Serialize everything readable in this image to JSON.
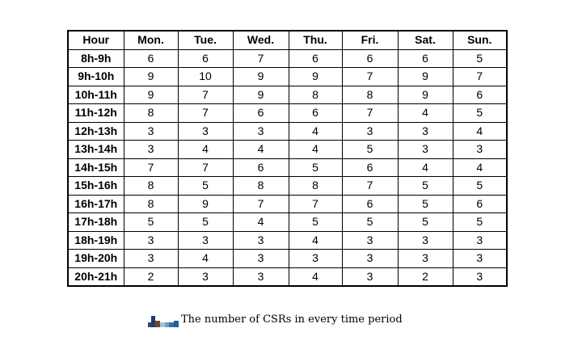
{
  "table": {
    "headers": [
      "Hour",
      "Mon.",
      "Tue.",
      "Wed.",
      "Thu.",
      "Fri.",
      "Sat.",
      "Sun."
    ],
    "rows": [
      [
        "8h-9h",
        "6",
        "6",
        "7",
        "6",
        "6",
        "6",
        "5"
      ],
      [
        "9h-10h",
        "9",
        "10",
        "9",
        "9",
        "7",
        "9",
        "7"
      ],
      [
        "10h-11h",
        "9",
        "7",
        "9",
        "8",
        "8",
        "9",
        "6"
      ],
      [
        "11h-12h",
        "8",
        "7",
        "6",
        "6",
        "7",
        "4",
        "5"
      ],
      [
        "12h-13h",
        "3",
        "3",
        "3",
        "4",
        "3",
        "3",
        "4"
      ],
      [
        "13h-14h",
        "3",
        "4",
        "4",
        "4",
        "5",
        "3",
        "3"
      ],
      [
        "14h-15h",
        "7",
        "7",
        "6",
        "5",
        "6",
        "4",
        "4"
      ],
      [
        "15h-16h",
        "8",
        "5",
        "8",
        "8",
        "7",
        "5",
        "5"
      ],
      [
        "16h-17h",
        "8",
        "9",
        "7",
        "7",
        "6",
        "5",
        "6"
      ],
      [
        "17h-18h",
        "5",
        "5",
        "4",
        "5",
        "5",
        "5",
        "5"
      ],
      [
        "18h-19h",
        "3",
        "3",
        "3",
        "4",
        "3",
        "3",
        "3"
      ],
      [
        "19h-20h",
        "3",
        "4",
        "3",
        "3",
        "3",
        "3",
        "3"
      ],
      [
        "20h-21h",
        "2",
        "3",
        "3",
        "4",
        "3",
        "2",
        "3"
      ]
    ]
  },
  "caption": {
    "text": "The number of CSRs in every time period"
  }
}
